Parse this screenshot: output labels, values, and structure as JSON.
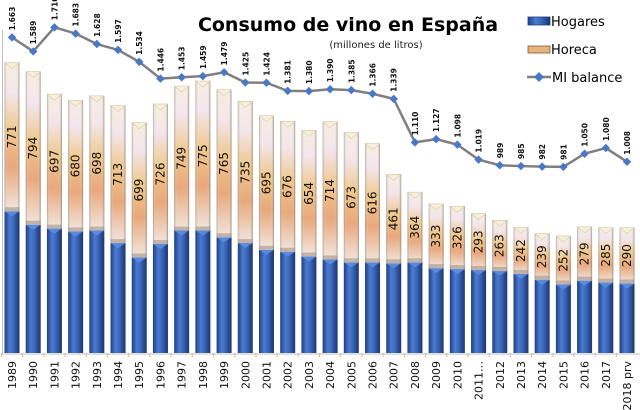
{
  "chart_data": {
    "type": "bar",
    "subtype": "stacked-bar-with-line",
    "title": "Consumo de vino en España",
    "subtitle": "(millones de litros)",
    "xlabel": "",
    "ylabel": "",
    "grid": false,
    "legend_position": "top-right",
    "categories": [
      "1989",
      "1990",
      "1991",
      "1992",
      "1993",
      "1994",
      "1995",
      "1996",
      "1997",
      "1998",
      "1999",
      "2000",
      "2001",
      "2002",
      "2003",
      "2004",
      "2005",
      "2006",
      "2007",
      "2008",
      "2009",
      "2010",
      "2011…",
      "2012",
      "2013",
      "2014",
      "2015",
      "2016",
      "2017",
      "2018 prv"
    ],
    "series": [
      {
        "name": "Hogares",
        "type": "bar",
        "color": "#3a66b8",
        "labeled": false,
        "values": [
          735,
          665,
          645,
          630,
          635,
          570,
          495,
          565,
          635,
          635,
          600,
          570,
          535,
          525,
          500,
          485,
          470,
          470,
          465,
          470,
          440,
          435,
          430,
          425,
          410,
          380,
          355,
          375,
          365,
          360
        ]
      },
      {
        "name": "Horeca",
        "type": "bar",
        "color": "#e8b47a",
        "labeled": true,
        "values": [
          771,
          794,
          697,
          680,
          698,
          713,
          699,
          726,
          749,
          775,
          765,
          735,
          695,
          676,
          654,
          714,
          673,
          616,
          461,
          364,
          333,
          326,
          293,
          263,
          242,
          239,
          252,
          279,
          285,
          290
        ]
      },
      {
        "name": "MI balance",
        "type": "line",
        "color": "#7f7f7f",
        "marker_color": "#4a78c8",
        "labeled": true,
        "values": [
          1663,
          1589,
          1716,
          1683,
          1628,
          1597,
          1534,
          1446,
          1453,
          1459,
          1479,
          1425,
          1424,
          1381,
          1380,
          1390,
          1385,
          1366,
          1339,
          1110,
          1127,
          1098,
          1019,
          989,
          985,
          982,
          981,
          1050,
          1080,
          1008
        ],
        "value_labels": [
          "1.663",
          "1.589",
          "1.716",
          "1.683",
          "1.628",
          "1.597",
          "1.534",
          "1.446",
          "1.453",
          "1.459",
          "1.479",
          "1.425",
          "1.424",
          "1.381",
          "1.380",
          "1.390",
          "1.385",
          "1.366",
          "1.339",
          "1.110",
          "1.127",
          "1.098",
          "1.019",
          "989",
          "985",
          "982",
          "981",
          "1.050",
          "1.080",
          "1.008"
        ]
      }
    ],
    "ylim_bars": [
      0,
      1830
    ],
    "ylim_line": [
      0,
      1860
    ]
  }
}
